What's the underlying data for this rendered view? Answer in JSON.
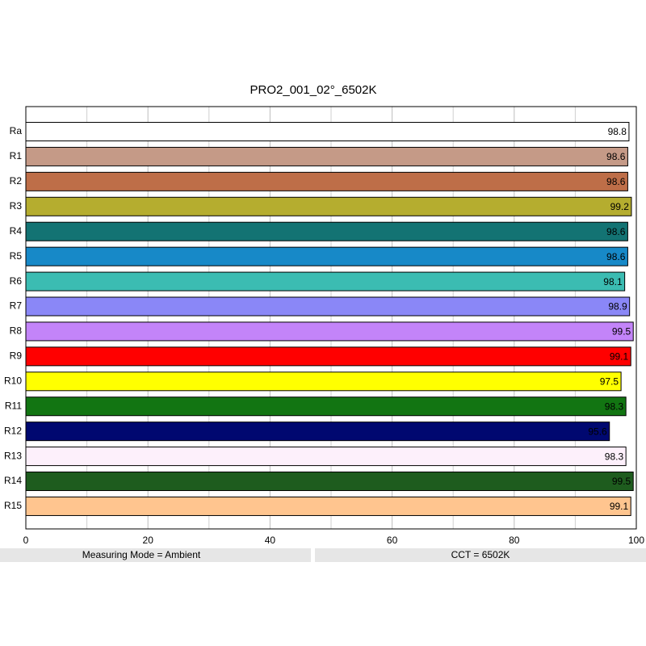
{
  "chart_data": {
    "type": "bar",
    "orientation": "horizontal",
    "title": "PRO2_001_02°_6502K",
    "categories": [
      "Ra",
      "R1",
      "R2",
      "R3",
      "R4",
      "R5",
      "R6",
      "R7",
      "R8",
      "R9",
      "R10",
      "R11",
      "R12",
      "R13",
      "R14",
      "R15"
    ],
    "values": [
      98.8,
      98.6,
      98.6,
      99.2,
      98.6,
      98.6,
      98.1,
      98.9,
      99.5,
      99.1,
      97.5,
      98.3,
      95.6,
      98.3,
      99.5,
      99.1
    ],
    "colors": [
      "#ffffff",
      "#c59a87",
      "#be6e48",
      "#b5ad2f",
      "#137373",
      "#1789c8",
      "#3bbcb2",
      "#8a87f7",
      "#c384f9",
      "#ff0000",
      "#ffff00",
      "#127512",
      "#000870",
      "#fdf0fb",
      "#1e5c1e",
      "#ffc58f"
    ],
    "xlim": [
      0,
      100
    ],
    "xticks": [
      0,
      20,
      40,
      60,
      80,
      100
    ],
    "minor_grid": [
      10,
      30,
      50,
      70,
      90
    ],
    "grid": true,
    "annotations": [
      "Measuring Mode = Ambient",
      "CCT = 6502K"
    ]
  }
}
